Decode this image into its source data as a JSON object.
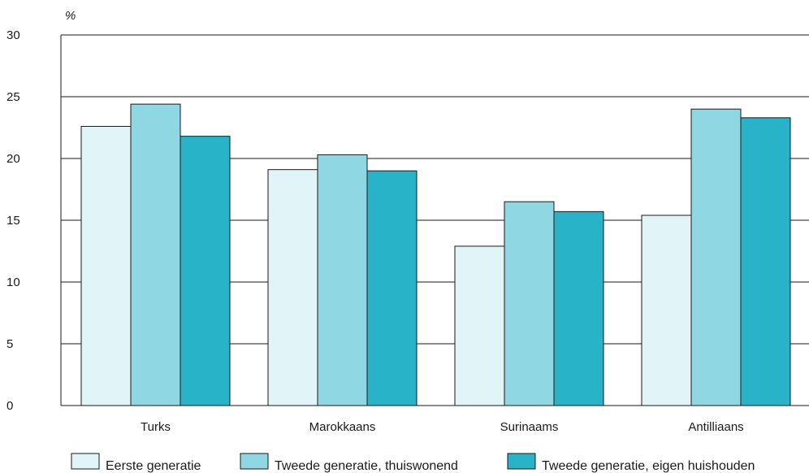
{
  "chart_data": {
    "type": "bar",
    "unit_label": "%",
    "categories": [
      "Turks",
      "Marokkaans",
      "Surinaams",
      "Antilliaans"
    ],
    "series": [
      {
        "name": "Eerste generatie",
        "color": "#e1f4f7",
        "values": [
          22.6,
          19.1,
          12.9,
          15.4
        ]
      },
      {
        "name": "Tweede generatie, thuiswonend",
        "color": "#8fd7e3",
        "values": [
          24.4,
          20.3,
          16.5,
          24.0
        ]
      },
      {
        "name": "Tweede generatie, eigen huishouden",
        "color": "#29b3c8",
        "values": [
          21.8,
          19.0,
          15.7,
          23.3
        ]
      }
    ],
    "ylim": [
      0,
      30
    ],
    "yticks": [
      0,
      5,
      10,
      15,
      20,
      25,
      30
    ],
    "grid": true,
    "legend_position": "bottom"
  }
}
